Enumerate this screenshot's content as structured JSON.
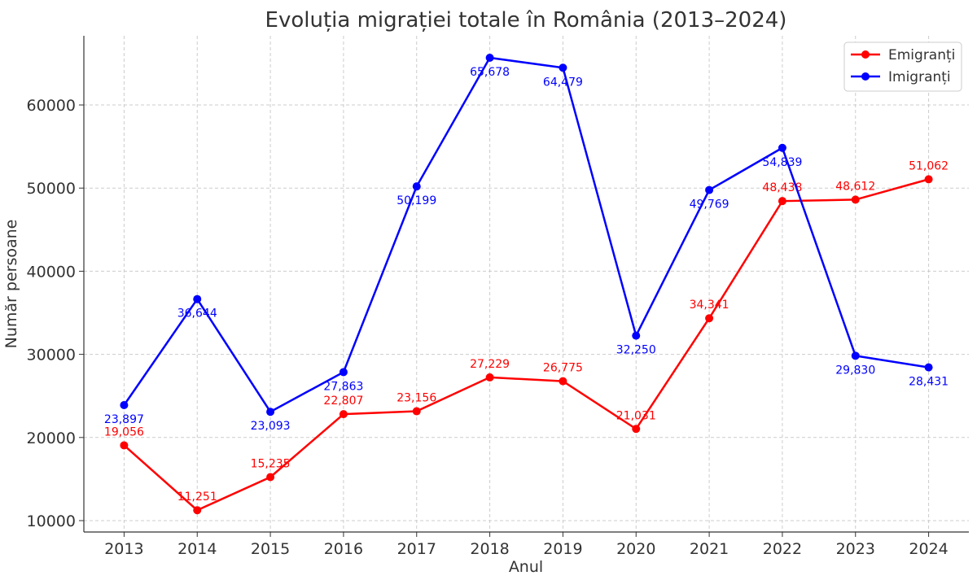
{
  "chart_data": {
    "type": "line",
    "title": "Evoluția migrației totale în România (2013–2024)",
    "xlabel": "Anul",
    "ylabel": "Număr persoane",
    "x": [
      2013,
      2014,
      2015,
      2016,
      2017,
      2018,
      2019,
      2020,
      2021,
      2022,
      2023,
      2024
    ],
    "x_tick_labels": [
      "2013",
      "2014",
      "2015",
      "2016",
      "2017",
      "2018",
      "2019",
      "2020",
      "2021",
      "2022",
      "2023",
      "2024"
    ],
    "y_ticks": [
      10000,
      20000,
      30000,
      40000,
      50000,
      60000
    ],
    "y_tick_labels": [
      "10000",
      "20000",
      "30000",
      "40000",
      "50000",
      "60000"
    ],
    "xlim": [
      2012.45,
      2024.55
    ],
    "ylim": [
      8630,
      68320
    ],
    "grid": true,
    "legend_position": "top-right",
    "series": [
      {
        "name": "Emigranți",
        "color": "#ff0000",
        "values": [
          19056,
          11251,
          15235,
          22807,
          23156,
          27229,
          26775,
          21031,
          34341,
          48438,
          48612,
          51062
        ],
        "labels": [
          "19,056",
          "11,251",
          "15,235",
          "22,807",
          "23,156",
          "27,229",
          "26,775",
          "21,031",
          "34,341",
          "48,438",
          "48,612",
          "51,062"
        ]
      },
      {
        "name": "Imigranți",
        "color": "#0000ff",
        "values": [
          23897,
          36644,
          23093,
          27863,
          50199,
          65678,
          64479,
          32250,
          49769,
          54839,
          29830,
          28431
        ],
        "labels": [
          "23,897",
          "36,644",
          "23,093",
          "27,863",
          "50,199",
          "65,678",
          "64,479",
          "32,250",
          "49,769",
          "54,839",
          "29,830",
          "28,431"
        ]
      }
    ]
  }
}
